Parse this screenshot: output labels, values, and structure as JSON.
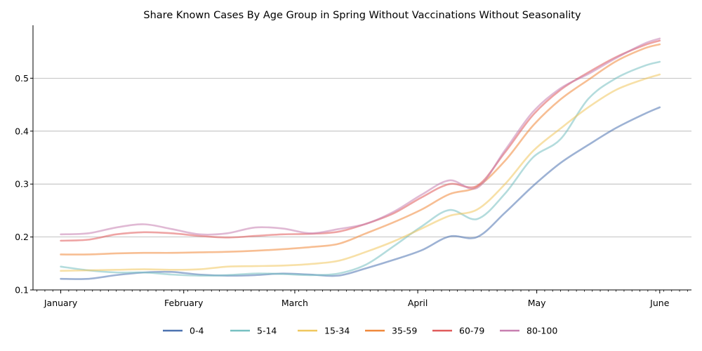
{
  "chart_data": {
    "type": "line",
    "title": "Share Known Cases By Age Group in Spring Without Vaccinations Without Seasonality",
    "xlabel": "",
    "ylabel": "",
    "x_ticks": [
      "January",
      "February",
      "March",
      "April",
      "May",
      "June"
    ],
    "x_tick_values": [
      0,
      31,
      59,
      90,
      120,
      151
    ],
    "xlim": [
      -7,
      159
    ],
    "ylim": [
      0.1,
      0.6
    ],
    "y_ticks": [
      "0.1",
      "0.2",
      "0.3",
      "0.4",
      "0.5"
    ],
    "y_tick_values": [
      0.1,
      0.2,
      0.3,
      0.4,
      0.5
    ],
    "grid": "horizontal",
    "legend_position": "bottom",
    "x": [
      0,
      7,
      14,
      21,
      28,
      35,
      42,
      49,
      56,
      63,
      70,
      77,
      84,
      91,
      98,
      105,
      112,
      119,
      126,
      133,
      140,
      147,
      151
    ],
    "series": [
      {
        "name": "0-4",
        "color": "#4c72b0",
        "values": [
          0.121,
          0.121,
          0.128,
          0.133,
          0.134,
          0.129,
          0.127,
          0.128,
          0.131,
          0.129,
          0.127,
          0.141,
          0.157,
          0.175,
          0.201,
          0.2,
          0.246,
          0.296,
          0.34,
          0.374,
          0.406,
          0.432,
          0.445
        ]
      },
      {
        "name": "5-14",
        "color": "#76c0c1",
        "values": [
          0.144,
          0.137,
          0.133,
          0.133,
          0.129,
          0.127,
          0.128,
          0.131,
          0.13,
          0.128,
          0.131,
          0.148,
          0.183,
          0.22,
          0.251,
          0.234,
          0.282,
          0.35,
          0.385,
          0.461,
          0.5,
          0.523,
          0.531
        ]
      },
      {
        "name": "15-34",
        "color": "#f0c75e",
        "values": [
          0.136,
          0.137,
          0.138,
          0.139,
          0.138,
          0.139,
          0.144,
          0.145,
          0.146,
          0.149,
          0.155,
          0.172,
          0.192,
          0.216,
          0.24,
          0.252,
          0.3,
          0.362,
          0.405,
          0.445,
          0.478,
          0.498,
          0.507
        ]
      },
      {
        "name": "35-59",
        "color": "#f0883a",
        "values": [
          0.167,
          0.167,
          0.169,
          0.17,
          0.17,
          0.171,
          0.172,
          0.174,
          0.177,
          0.181,
          0.187,
          0.207,
          0.228,
          0.252,
          0.281,
          0.295,
          0.344,
          0.41,
          0.46,
          0.497,
          0.532,
          0.556,
          0.564
        ]
      },
      {
        "name": "60-79",
        "color": "#e05a5a",
        "values": [
          0.193,
          0.195,
          0.205,
          0.209,
          0.207,
          0.202,
          0.199,
          0.202,
          0.205,
          0.206,
          0.21,
          0.225,
          0.245,
          0.275,
          0.3,
          0.297,
          0.36,
          0.43,
          0.478,
          0.511,
          0.54,
          0.562,
          0.571
        ]
      },
      {
        "name": "80-100",
        "color": "#c77fb0",
        "values": [
          0.205,
          0.207,
          0.218,
          0.224,
          0.215,
          0.205,
          0.207,
          0.218,
          0.216,
          0.207,
          0.215,
          0.225,
          0.248,
          0.28,
          0.307,
          0.293,
          0.364,
          0.436,
          0.481,
          0.508,
          0.538,
          0.565,
          0.575
        ]
      }
    ]
  }
}
